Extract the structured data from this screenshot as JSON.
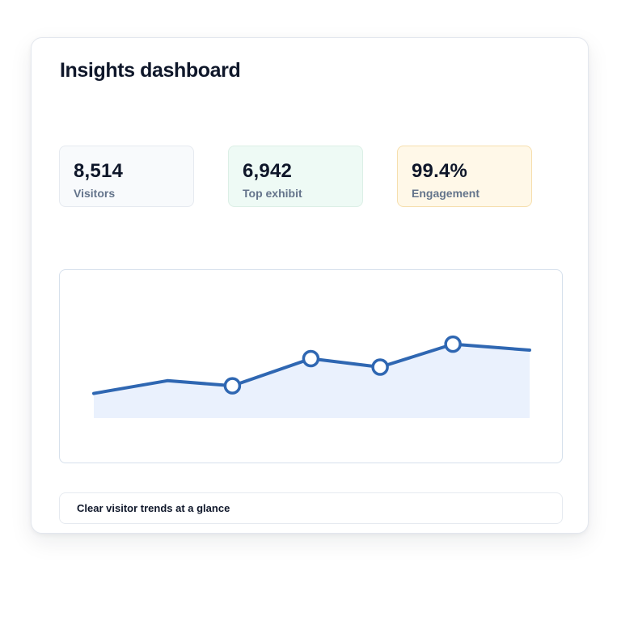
{
  "dashboard": {
    "title": "Insights dashboard"
  },
  "stats": [
    {
      "value": "8,514",
      "label": "Visitors"
    },
    {
      "value": "6,942",
      "label": "Top exhibit"
    },
    {
      "value": "99.4%",
      "label": "Engagement"
    }
  ],
  "chart_data": {
    "type": "area",
    "x": [
      1,
      2,
      3,
      4,
      5,
      6,
      7
    ],
    "series": [
      {
        "values": [
          29,
          44,
          38,
          70,
          60,
          87,
          80
        ]
      }
    ],
    "marked_points": [
      2,
      3,
      4,
      5
    ],
    "ylim": [
      0,
      100
    ],
    "grid": false,
    "colors": {
      "line": "#2f67b2",
      "fill": "#eaf1fd",
      "marker_fill": "#ffffff"
    }
  },
  "footer": {
    "caption": "Clear visitor trends at a glance"
  }
}
